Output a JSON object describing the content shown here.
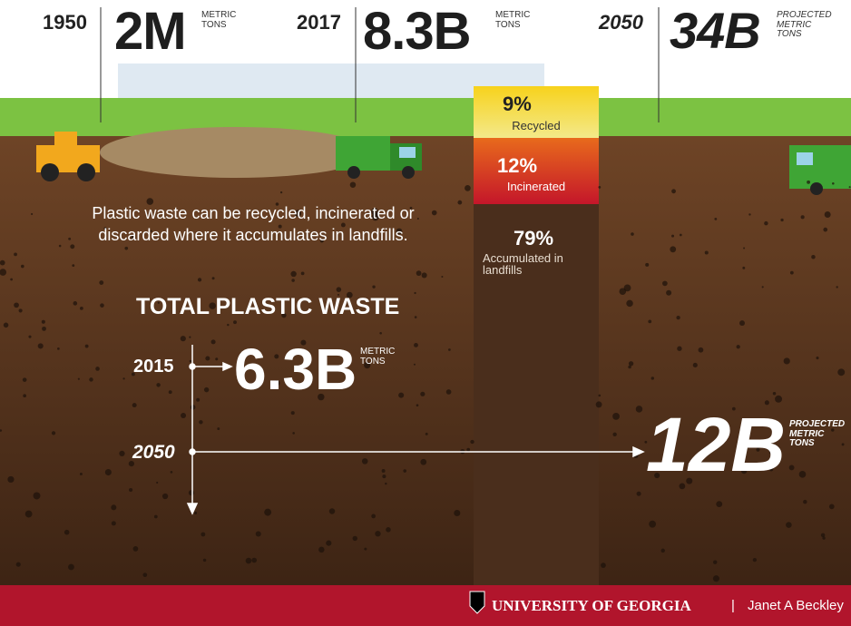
{
  "header": {
    "items": [
      {
        "year": "1950",
        "amount": "2M",
        "unit": "METRIC\nTONS"
      },
      {
        "year": "2017",
        "amount": "8.3B",
        "unit": "METRIC\nTONS"
      },
      {
        "year": "2050",
        "amount": "34B",
        "unit": "PROJECTED\nMETRIC\nTONS"
      }
    ]
  },
  "fates": [
    {
      "percent": "9%",
      "label": "Recycled"
    },
    {
      "percent": "12%",
      "label": "Incinerated"
    },
    {
      "percent": "79%",
      "label": "Accumulated in\nlandfills"
    }
  ],
  "note": "Plastic waste can be recycled, incinerated or\ndiscarded where it accumulates in landfills.",
  "total": {
    "title": "TOTAL PLASTIC WASTE",
    "items": [
      {
        "year": "2015",
        "amount": "6.3B",
        "unit": "METRIC\nTONS"
      },
      {
        "year": "2050",
        "amount": "12B",
        "unit": "PROJECTED\nMETRIC\nTONS"
      }
    ]
  },
  "footer": {
    "org": "UNIVERSITY OF GEORGIA",
    "separator": "|",
    "author": "Janet A Beckley"
  }
}
